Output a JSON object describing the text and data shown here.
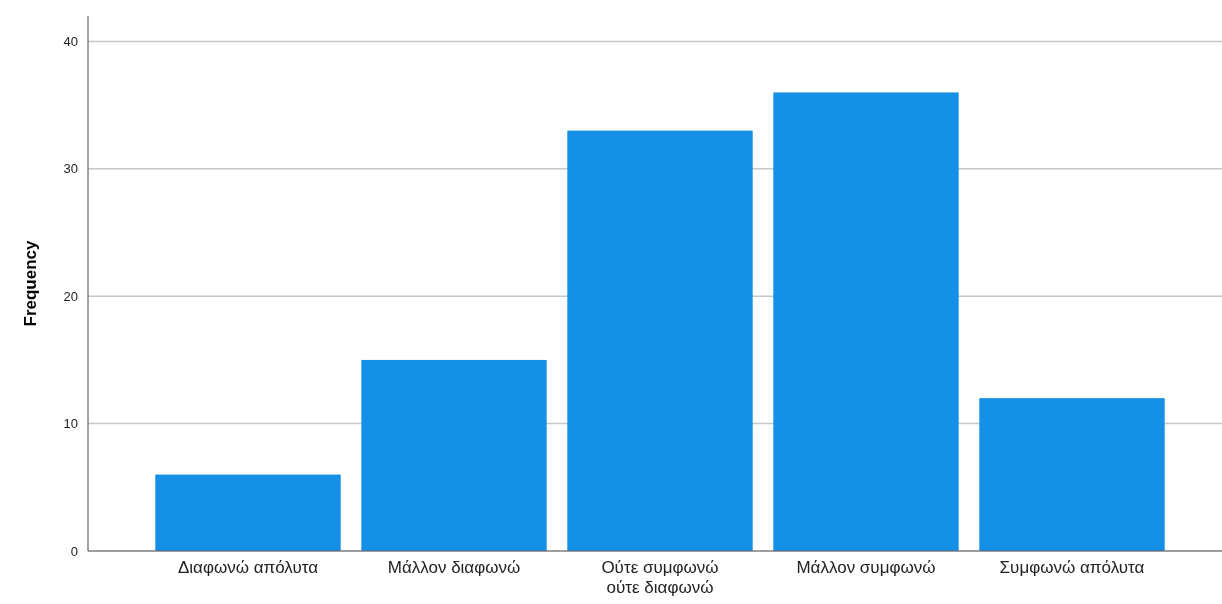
{
  "chart_data": {
    "type": "bar",
    "ylabel": "Frequency",
    "categories": [
      "Διαφωνώ απόλυτα",
      "Μάλλον διαφωνώ",
      "Ούτε συμφωνώ ούτε διαφωνώ",
      "Μάλλον συμφωνώ",
      "Συμφωνώ απόλυτα"
    ],
    "values": [
      6,
      15,
      33,
      36,
      12
    ],
    "color": "#1490e6",
    "ylim": [
      0,
      42
    ],
    "yticks": [
      0,
      10,
      20,
      30,
      40
    ],
    "grid": "y"
  }
}
